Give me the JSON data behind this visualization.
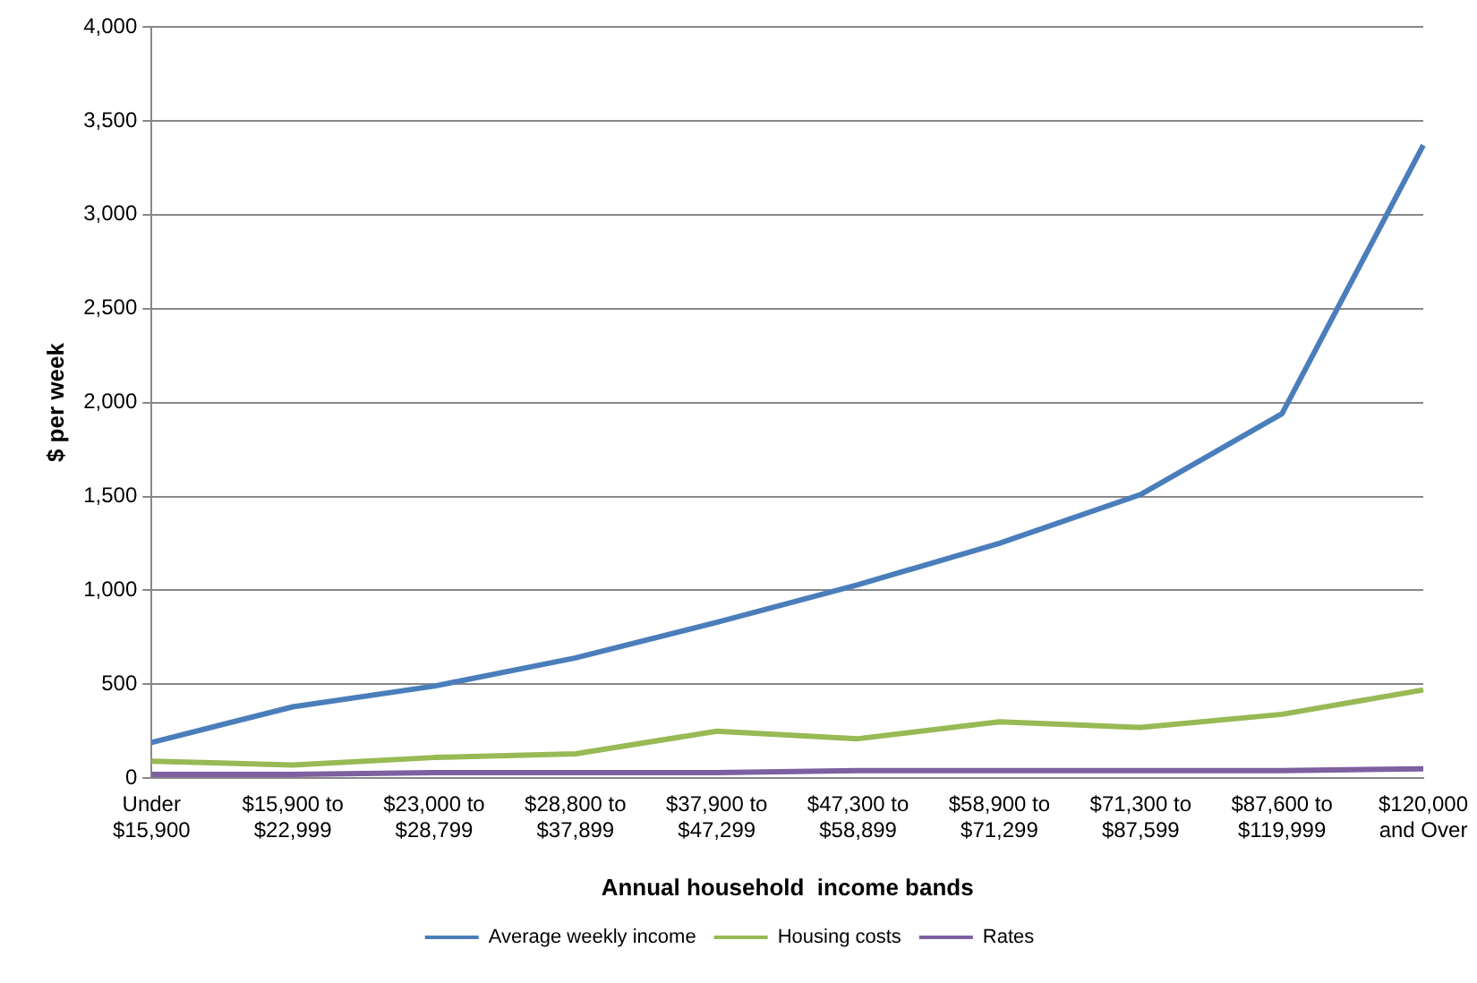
{
  "chart_data": {
    "type": "line",
    "xlabel": "Annual household  income bands",
    "ylabel": "$ per week",
    "categories": [
      "Under\n$15,900",
      "$15,900 to\n$22,999",
      "$23,000 to\n$28,799",
      "$28,800 to\n$37,899",
      "$37,900 to\n$47,299",
      "$47,300 to\n$58,899",
      "$58,900 to\n$71,299",
      "$71,300 to\n$87,599",
      "$87,600 to\n$119,999",
      "$120,000\nand Over"
    ],
    "series": [
      {
        "name": "Average weekly income",
        "color": "#4a7ebb",
        "values": [
          190,
          380,
          490,
          640,
          830,
          1030,
          1250,
          1510,
          1940,
          3370
        ]
      },
      {
        "name": "Housing costs",
        "color": "#98b954",
        "values": [
          90,
          70,
          110,
          130,
          250,
          210,
          300,
          270,
          340,
          470
        ]
      },
      {
        "name": "Rates",
        "color": "#7d60a0",
        "values": [
          20,
          20,
          30,
          30,
          30,
          40,
          40,
          40,
          40,
          50
        ]
      }
    ],
    "ylim": [
      0,
      4000
    ],
    "yticks": [
      {
        "value": 0,
        "label": "0"
      },
      {
        "value": 500,
        "label": "500"
      },
      {
        "value": 1000,
        "label": "1,000"
      },
      {
        "value": 1500,
        "label": "1,500"
      },
      {
        "value": 2000,
        "label": "2,000"
      },
      {
        "value": 2500,
        "label": "2,500"
      },
      {
        "value": 3000,
        "label": "3,000"
      },
      {
        "value": 3500,
        "label": "3,500"
      },
      {
        "value": 4000,
        "label": "4,000"
      }
    ],
    "grid": "y",
    "legend": "bottom",
    "marker": "none",
    "line_style": "solid"
  }
}
